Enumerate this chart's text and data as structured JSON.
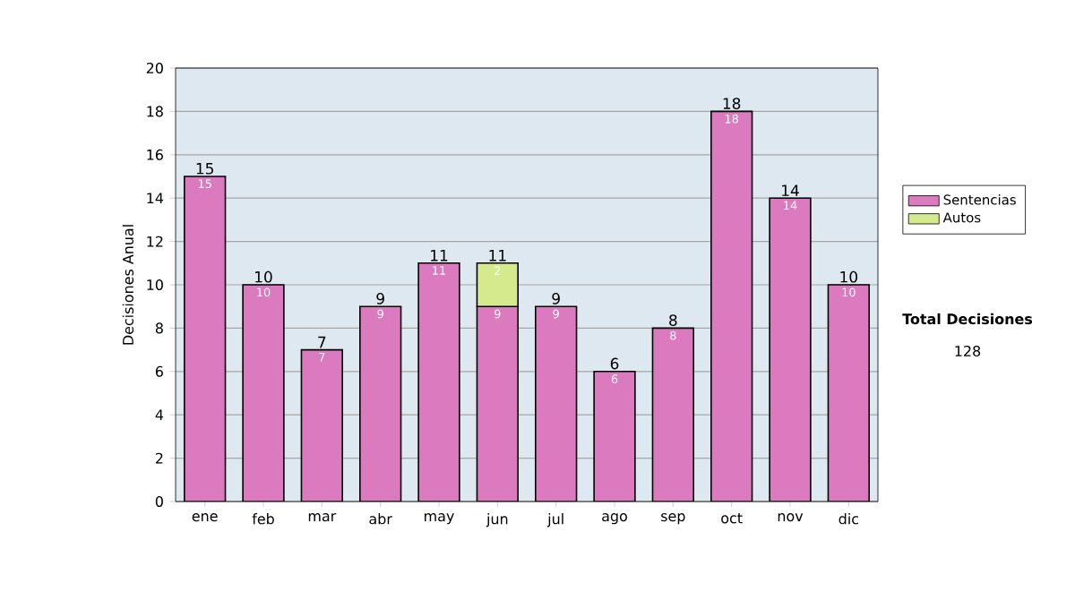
{
  "chart_data": {
    "type": "bar",
    "stacked": true,
    "ylabel": "Decisiones Anual",
    "categories": [
      "ene",
      "feb",
      "mar",
      "abr",
      "may",
      "jun",
      "jul",
      "ago",
      "sep",
      "oct",
      "nov",
      "dic"
    ],
    "series": [
      {
        "name": "Sentencias",
        "color": "#dc7ac0",
        "values": [
          15,
          10,
          7,
          9,
          11,
          9,
          9,
          6,
          8,
          18,
          14,
          10
        ]
      },
      {
        "name": "Autos",
        "color": "#d4ea8c",
        "values": [
          null,
          null,
          null,
          null,
          null,
          2,
          null,
          null,
          null,
          null,
          null,
          null
        ]
      }
    ],
    "totals": [
      "15",
      "10",
      "7",
      "9",
      "11",
      "11",
      "9",
      "6",
      "8",
      "18",
      "14",
      "10"
    ],
    "data_labels": true,
    "ylim": [
      0,
      20
    ],
    "yticks": [
      0,
      2,
      4,
      6,
      8,
      10,
      12,
      14,
      16,
      18,
      20
    ],
    "grid": "y",
    "legend": "right",
    "annotations": [
      "Total Decisiones",
      "128"
    ]
  }
}
